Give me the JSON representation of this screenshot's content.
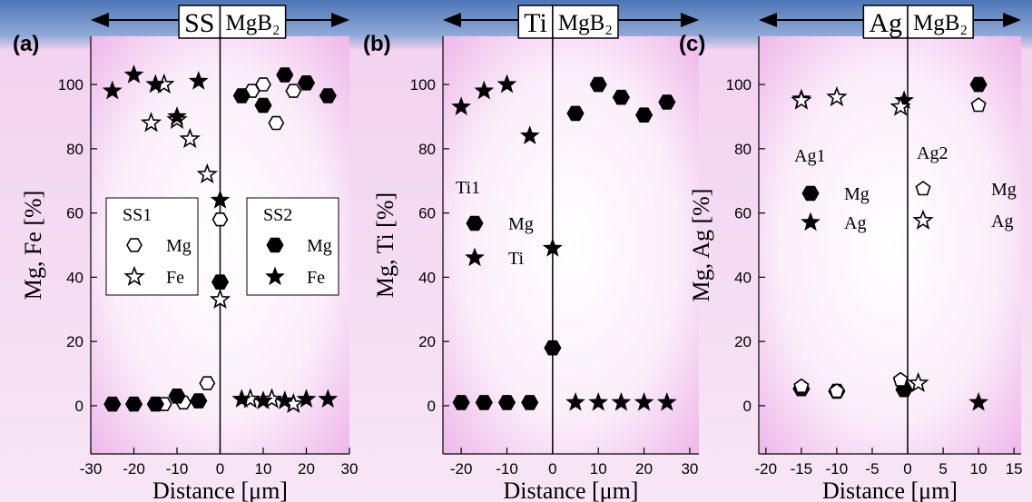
{
  "chart_data": [
    {
      "type": "scatter",
      "panel_label": "(a)",
      "left_label": "SS",
      "right_label": "MgB₂",
      "ylabel": "Mg, Fe [%]",
      "xlabel": "Distance [μm]",
      "xlim": [
        -30,
        30
      ],
      "ylim": [
        -15,
        115
      ],
      "xticks": [
        -30,
        -20,
        -10,
        0,
        10,
        20,
        30
      ],
      "yticks": [
        0,
        20,
        40,
        60,
        80,
        100
      ],
      "legend_frame": true,
      "groups": [
        {
          "name": "SS1",
          "series": [
            {
              "name": "Mg",
              "marker": "hexagon",
              "filled": false,
              "x": [
                -13,
                -8.5,
                -3,
                0,
                7.4,
                10,
                13,
                17
              ],
              "values": [
                0.5,
                1,
                7,
                58,
                98,
                100,
                88,
                98
              ]
            },
            {
              "name": "Fe",
              "marker": "star",
              "filled": false,
              "x": [
                -16,
                -13,
                -10,
                -7,
                -3,
                0,
                7,
                12,
                17
              ],
              "values": [
                88,
                100,
                89,
                83,
                72,
                33,
                2,
                2,
                0.5
              ]
            }
          ]
        },
        {
          "name": "SS2",
          "series": [
            {
              "name": "Mg",
              "marker": "hexagon",
              "filled": true,
              "x": [
                -25,
                -20,
                -15,
                -10,
                -5,
                0,
                5,
                10,
                15,
                20,
                25
              ],
              "values": [
                0.5,
                0.5,
                0.5,
                3,
                1.5,
                38.5,
                96.5,
                93.5,
                103,
                100.5,
                96.5
              ]
            },
            {
              "name": "Fe",
              "marker": "star",
              "filled": true,
              "x": [
                -25,
                -20,
                -15,
                -10,
                -5,
                0,
                5,
                10,
                15,
                20,
                25
              ],
              "values": [
                98,
                103,
                100,
                90,
                101,
                64,
                2,
                1.5,
                1.5,
                2,
                2
              ]
            }
          ]
        }
      ]
    },
    {
      "type": "scatter",
      "panel_label": "(b)",
      "left_label": "Ti",
      "right_label": "MgB₂",
      "ylabel": "Mg, Ti [%]",
      "xlabel": "Distance [μm]",
      "xlim": [
        -24,
        32
      ],
      "ylim": [
        -15,
        115
      ],
      "xticks": [
        -20,
        -10,
        0,
        10,
        20,
        30
      ],
      "yticks": [
        0,
        20,
        40,
        60,
        80,
        100
      ],
      "legend_frame": false,
      "groups": [
        {
          "name": "Ti1",
          "series": [
            {
              "name": "Mg",
              "marker": "hexagon",
              "filled": true,
              "x": [
                -20,
                -15,
                -10,
                -5,
                0,
                5,
                10,
                15,
                20,
                25
              ],
              "values": [
                1,
                1,
                1,
                1,
                18,
                91,
                100,
                96,
                90.5,
                94.5
              ]
            },
            {
              "name": "Ti",
              "marker": "star",
              "filled": true,
              "x": [
                -20,
                -15,
                -10,
                -5,
                0,
                5,
                10,
                15,
                20,
                25
              ],
              "values": [
                93,
                98,
                100,
                84,
                49,
                1,
                1,
                1,
                1,
                1
              ]
            }
          ]
        }
      ]
    },
    {
      "type": "scatter",
      "panel_label": "(c)",
      "left_label": "Ag",
      "right_label": "MgB₂",
      "ylabel": "Mg, Ag [%]",
      "xlabel": "Distance [μm]",
      "xlim": [
        -21,
        16
      ],
      "ylim": [
        -15,
        115
      ],
      "xticks": [
        -20,
        -15,
        -10,
        -5,
        0,
        5,
        10,
        15
      ],
      "yticks": [
        0,
        20,
        40,
        60,
        80,
        100
      ],
      "legend_frame": false,
      "groups": [
        {
          "name": "Ag1",
          "series": [
            {
              "name": "Mg",
              "marker": "hexagon",
              "filled": true,
              "x": [
                -15,
                -10,
                -0.5,
                10
              ],
              "values": [
                5.3,
                4.5,
                5,
                100
              ]
            },
            {
              "name": "Ag",
              "marker": "star",
              "filled": true,
              "x": [
                -15,
                -10,
                -0.5,
                10
              ],
              "values": [
                95.5,
                96,
                95,
                1
              ]
            }
          ]
        },
        {
          "name": "Ag2",
          "series": [
            {
              "name": "Mg",
              "marker": "pentagon",
              "filled": false,
              "x": [
                -15,
                -10,
                -1,
                10
              ],
              "values": [
                6,
                4.5,
                8,
                93.5
              ]
            },
            {
              "name": "Ag",
              "marker": "star",
              "filled": false,
              "x": [
                -15,
                -10,
                -1,
                1.5
              ],
              "values": [
                95,
                96,
                93,
                7
              ]
            }
          ]
        }
      ]
    }
  ]
}
